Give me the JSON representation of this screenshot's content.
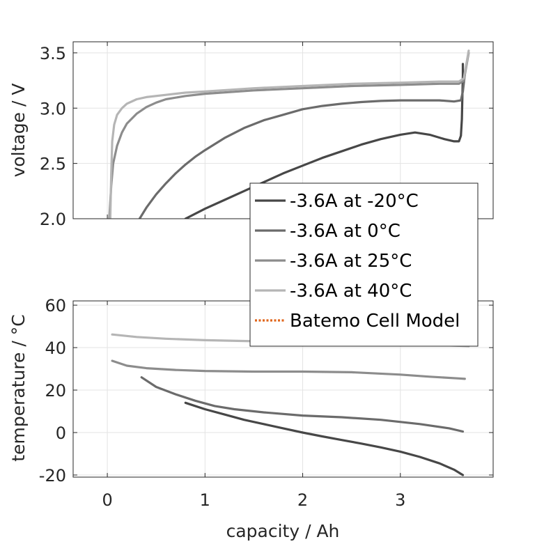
{
  "chart_data": [
    {
      "type": "line",
      "ylabel": "voltage / V",
      "xlim": [
        -0.35,
        3.95
      ],
      "ylim": [
        2.0,
        3.6
      ],
      "yticks": [
        "2.0",
        "2.5",
        "3.0",
        "3.5"
      ],
      "yticks_values": [
        2.0,
        2.5,
        3.0,
        3.5
      ],
      "grid": true,
      "series": [
        {
          "name": "-3.6A at -20°C",
          "color": "#474747",
          "points": [
            [
              0.8,
              2.0
            ],
            [
              1.0,
              2.09
            ],
            [
              1.2,
              2.17
            ],
            [
              1.4,
              2.25
            ],
            [
              1.6,
              2.33
            ],
            [
              1.8,
              2.41
            ],
            [
              2.0,
              2.48
            ],
            [
              2.2,
              2.55
            ],
            [
              2.4,
              2.61
            ],
            [
              2.6,
              2.67
            ],
            [
              2.8,
              2.72
            ],
            [
              3.0,
              2.76
            ],
            [
              3.15,
              2.78
            ],
            [
              3.3,
              2.76
            ],
            [
              3.45,
              2.72
            ],
            [
              3.55,
              2.7
            ],
            [
              3.6,
              2.7
            ],
            [
              3.62,
              2.75
            ],
            [
              3.63,
              2.9
            ],
            [
              3.64,
              3.3
            ],
            [
              3.64,
              3.4
            ]
          ]
        },
        {
          "name": "-3.6A at 0°C",
          "color": "#6b6b6b",
          "points": [
            [
              0.33,
              2.0
            ],
            [
              0.4,
              2.1
            ],
            [
              0.5,
              2.22
            ],
            [
              0.6,
              2.32
            ],
            [
              0.7,
              2.41
            ],
            [
              0.8,
              2.49
            ],
            [
              0.9,
              2.56
            ],
            [
              1.0,
              2.62
            ],
            [
              1.2,
              2.73
            ],
            [
              1.4,
              2.82
            ],
            [
              1.6,
              2.89
            ],
            [
              1.8,
              2.94
            ],
            [
              2.0,
              2.99
            ],
            [
              2.2,
              3.02
            ],
            [
              2.4,
              3.04
            ],
            [
              2.6,
              3.055
            ],
            [
              2.8,
              3.065
            ],
            [
              3.0,
              3.07
            ],
            [
              3.2,
              3.07
            ],
            [
              3.4,
              3.07
            ],
            [
              3.55,
              3.06
            ],
            [
              3.62,
              3.07
            ],
            [
              3.64,
              3.15
            ],
            [
              3.66,
              3.3
            ]
          ]
        },
        {
          "name": "-3.6A at 25°C",
          "color": "#8c8c8c",
          "points": [
            [
              0.02,
              2.0
            ],
            [
              0.04,
              2.3
            ],
            [
              0.06,
              2.5
            ],
            [
              0.1,
              2.66
            ],
            [
              0.15,
              2.78
            ],
            [
              0.2,
              2.86
            ],
            [
              0.3,
              2.95
            ],
            [
              0.4,
              3.01
            ],
            [
              0.5,
              3.05
            ],
            [
              0.6,
              3.08
            ],
            [
              0.8,
              3.11
            ],
            [
              1.0,
              3.13
            ],
            [
              1.5,
              3.16
            ],
            [
              2.0,
              3.18
            ],
            [
              2.5,
              3.2
            ],
            [
              3.0,
              3.21
            ],
            [
              3.4,
              3.22
            ],
            [
              3.6,
              3.22
            ],
            [
              3.65,
              3.25
            ],
            [
              3.68,
              3.4
            ],
            [
              3.7,
              3.5
            ]
          ]
        },
        {
          "name": "-3.6A at 40°C",
          "color": "#b5b5b5",
          "points": [
            [
              0.03,
              2.0
            ],
            [
              0.04,
              2.4
            ],
            [
              0.05,
              2.7
            ],
            [
              0.07,
              2.85
            ],
            [
              0.1,
              2.94
            ],
            [
              0.15,
              3.0
            ],
            [
              0.2,
              3.04
            ],
            [
              0.3,
              3.08
            ],
            [
              0.4,
              3.1
            ],
            [
              0.6,
              3.12
            ],
            [
              0.8,
              3.14
            ],
            [
              1.0,
              3.15
            ],
            [
              1.5,
              3.18
            ],
            [
              2.0,
              3.2
            ],
            [
              2.5,
              3.22
            ],
            [
              3.0,
              3.23
            ],
            [
              3.4,
              3.24
            ],
            [
              3.6,
              3.24
            ],
            [
              3.65,
              3.27
            ],
            [
              3.68,
              3.42
            ],
            [
              3.7,
              3.52
            ]
          ]
        }
      ]
    },
    {
      "type": "line",
      "xlabel": "capacity / Ah",
      "ylabel": "temperature / °C",
      "xlim": [
        -0.35,
        3.95
      ],
      "ylim": [
        -21,
        62
      ],
      "xticks": [
        "0",
        "1",
        "2",
        "3"
      ],
      "xticks_values": [
        0,
        1,
        2,
        3
      ],
      "yticks": [
        "-20",
        "0",
        "20",
        "40",
        "60"
      ],
      "yticks_values": [
        -20,
        0,
        20,
        40,
        60
      ],
      "grid": true,
      "series": [
        {
          "name": "-3.6A at -20°C",
          "color": "#474747",
          "points": [
            [
              0.8,
              14.0
            ],
            [
              1.0,
              11.0
            ],
            [
              1.2,
              8.5
            ],
            [
              1.4,
              6.0
            ],
            [
              1.6,
              4.0
            ],
            [
              1.8,
              2.0
            ],
            [
              2.0,
              0.0
            ],
            [
              2.2,
              -1.8
            ],
            [
              2.4,
              -3.5
            ],
            [
              2.6,
              -5.2
            ],
            [
              2.8,
              -7.0
            ],
            [
              3.0,
              -9.0
            ],
            [
              3.2,
              -11.5
            ],
            [
              3.4,
              -14.5
            ],
            [
              3.55,
              -17.5
            ],
            [
              3.64,
              -20.0
            ]
          ]
        },
        {
          "name": "-3.6A at 0°C",
          "color": "#6b6b6b",
          "points": [
            [
              0.35,
              26.0
            ],
            [
              0.5,
              21.5
            ],
            [
              0.7,
              18.0
            ],
            [
              0.9,
              15.0
            ],
            [
              1.1,
              12.5
            ],
            [
              1.3,
              11.0
            ],
            [
              1.6,
              9.5
            ],
            [
              2.0,
              8.0
            ],
            [
              2.4,
              7.2
            ],
            [
              2.8,
              6.0
            ],
            [
              3.2,
              4.0
            ],
            [
              3.5,
              2.0
            ],
            [
              3.64,
              0.5
            ]
          ]
        },
        {
          "name": "-3.6A at 25°C",
          "color": "#8c8c8c",
          "points": [
            [
              0.05,
              33.8
            ],
            [
              0.2,
              31.5
            ],
            [
              0.4,
              30.3
            ],
            [
              0.7,
              29.5
            ],
            [
              1.0,
              29.0
            ],
            [
              1.5,
              28.7
            ],
            [
              2.0,
              28.7
            ],
            [
              2.5,
              28.4
            ],
            [
              3.0,
              27.3
            ],
            [
              3.3,
              26.3
            ],
            [
              3.6,
              25.5
            ],
            [
              3.66,
              25.3
            ]
          ]
        },
        {
          "name": "-3.6A at 40°C",
          "color": "#b5b5b5",
          "points": [
            [
              0.05,
              46.2
            ],
            [
              0.3,
              45.0
            ],
            [
              0.6,
              44.2
            ],
            [
              1.0,
              43.5
            ],
            [
              1.5,
              43.0
            ],
            [
              2.0,
              43.0
            ],
            [
              2.5,
              43.0
            ],
            [
              3.0,
              42.2
            ],
            [
              3.4,
              41.2
            ],
            [
              3.7,
              40.7
            ]
          ]
        }
      ]
    }
  ],
  "legend": {
    "placement": "center-right",
    "entries": [
      {
        "label": "-3.6A at -20°C",
        "color": "#474747",
        "style": "solid"
      },
      {
        "label": "-3.6A at 0°C",
        "color": "#6b6b6b",
        "style": "solid"
      },
      {
        "label": "-3.6A at 25°C",
        "color": "#8c8c8c",
        "style": "solid"
      },
      {
        "label": "-3.6A at 40°C",
        "color": "#b5b5b5",
        "style": "solid"
      },
      {
        "label": "Batemo Cell Model",
        "color": "#e0661c",
        "style": "dotted"
      }
    ]
  }
}
